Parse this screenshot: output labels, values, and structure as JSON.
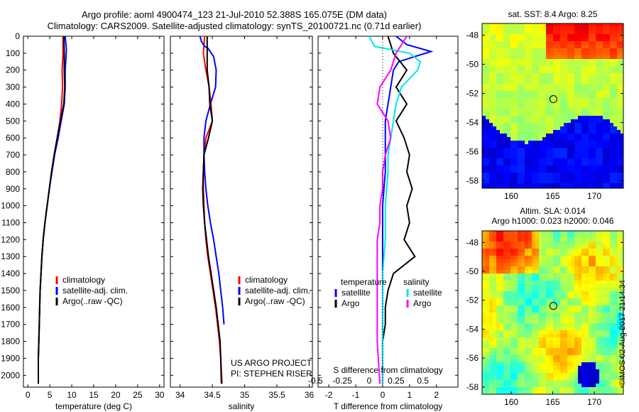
{
  "header": {
    "title_line1": "Argo profile: aoml 4900474_123 21-Jul-2010 52.388S 165.075E (DM data)",
    "title_line2": "Climatology: CARS2009. Satellite-adjusted climatology: synTS_20100721.nc (0.71d earlier)"
  },
  "colors": {
    "climatology": "#ff0000",
    "satellite": "#0000ff",
    "argo": "#000000",
    "salinity_satellite": "#00e5ee",
    "salinity_argo": "#ff00ff"
  },
  "chart_data": [
    {
      "type": "line",
      "id": "temperature",
      "xlabel": "temperature (deg C)",
      "ylabel": "",
      "xlim": [
        -1,
        31
      ],
      "ylim": [
        2070,
        0
      ],
      "xticks": [
        0,
        5,
        10,
        15,
        20,
        25,
        30
      ],
      "xtick_labels": [
        "0",
        "5",
        "10",
        "15",
        "20",
        "25",
        "30"
      ],
      "yticks": [
        0,
        100,
        200,
        300,
        400,
        500,
        600,
        700,
        800,
        900,
        1000,
        1100,
        1200,
        1300,
        1400,
        1500,
        1600,
        1700,
        1800,
        1900,
        2000
      ],
      "ytick_labels": [
        "0",
        "100",
        "200",
        "300",
        "400",
        "500",
        "600",
        "700",
        "800",
        "900",
        "1000",
        "1100",
        "1200",
        "1300",
        "1400",
        "1500",
        "1600",
        "1700",
        "1800",
        "1900",
        "2000"
      ],
      "legend": [
        "climatology",
        "satellite-adj. clim.",
        "Argo(..raw -QC)"
      ],
      "series": [
        {
          "name": "climatology",
          "color": "#ff0000",
          "x": [
            8.0,
            8.0,
            7.8,
            7.9,
            7.7,
            7.3,
            6.7,
            6.0,
            5.4,
            4.9,
            4.4,
            3.9,
            3.5,
            3.2,
            3.0,
            2.8,
            2.7,
            2.6,
            2.5,
            2.4,
            2.4
          ],
          "y": [
            0,
            100,
            200,
            300,
            400,
            500,
            600,
            700,
            800,
            900,
            1000,
            1100,
            1200,
            1300,
            1400,
            1500,
            1600,
            1700,
            1800,
            1900,
            2050
          ]
        },
        {
          "name": "satellite-adj. clim.",
          "color": "#0000ff",
          "x": [
            8.5,
            8.8,
            8.5,
            8.5,
            8.3,
            7.6,
            6.9,
            6.1,
            5.5,
            4.9,
            4.4,
            3.9,
            3.5,
            3.2,
            3.0,
            2.8,
            2.7,
            2.6,
            2.5,
            2.4,
            2.4
          ],
          "y": [
            0,
            80,
            200,
            300,
            400,
            500,
            600,
            700,
            800,
            900,
            1000,
            1100,
            1200,
            1300,
            1400,
            1500,
            1600,
            1700,
            1800,
            1900,
            2050
          ]
        },
        {
          "name": "Argo(..raw -QC)",
          "color": "#000000",
          "x": [
            8.2,
            8.3,
            8.3,
            8.4,
            8.2,
            7.4,
            6.7,
            6.0,
            5.4,
            4.9,
            4.4,
            3.9,
            3.5,
            3.2,
            3.0,
            2.8,
            2.7,
            2.6,
            2.5,
            2.4,
            2.4
          ],
          "y": [
            0,
            100,
            200,
            300,
            400,
            500,
            600,
            700,
            800,
            900,
            1000,
            1100,
            1200,
            1300,
            1400,
            1500,
            1600,
            1700,
            1800,
            1900,
            2050
          ]
        }
      ]
    },
    {
      "type": "line",
      "id": "salinity",
      "xlabel": "salinity",
      "ylabel": "",
      "xlim": [
        33.85,
        36.05
      ],
      "ylim": [
        2070,
        0
      ],
      "xticks": [
        34,
        34.5,
        35,
        35.5,
        36
      ],
      "xtick_labels": [
        "34",
        "34.5",
        "35",
        "35.5",
        "36"
      ],
      "legend": [
        "climatology",
        "satellite-adj. clim.",
        "Argo(..raw -QC)"
      ],
      "annotations": [
        "US ARGO PROJECT",
        "PI: STEPHEN RISER"
      ],
      "series": [
        {
          "name": "climatology",
          "color": "#ff0000",
          "x": [
            34.38,
            34.36,
            34.4,
            34.45,
            34.48,
            34.5,
            34.4,
            34.37,
            34.36,
            34.36,
            34.37,
            34.38,
            34.4,
            34.43,
            34.47,
            34.51,
            34.55,
            34.58,
            34.61,
            34.63,
            34.65
          ],
          "y": [
            0,
            100,
            200,
            300,
            400,
            500,
            600,
            700,
            800,
            900,
            1000,
            1100,
            1200,
            1300,
            1400,
            1500,
            1600,
            1700,
            1800,
            1900,
            2050
          ]
        },
        {
          "name": "satellite-adj. clim.",
          "color": "#0000ff",
          "x": [
            34.31,
            34.33,
            34.38,
            34.43,
            34.52,
            34.56,
            34.55,
            34.47,
            34.4,
            34.37,
            34.37,
            34.38,
            34.4,
            34.43,
            34.47,
            34.52,
            34.56,
            34.6,
            34.63,
            34.66,
            34.68
          ],
          "y": [
            0,
            30,
            60,
            70,
            120,
            200,
            300,
            400,
            500,
            600,
            700,
            800,
            900,
            1000,
            1100,
            1200,
            1300,
            1400,
            1500,
            1600,
            1700
          ]
        },
        {
          "name": "Argo(..raw -QC)",
          "color": "#000000",
          "x": [
            34.42,
            34.42,
            34.42,
            34.45,
            34.46,
            34.5,
            34.44,
            34.37,
            34.36,
            34.35,
            34.36,
            34.38,
            34.41,
            34.44,
            34.48,
            34.52,
            34.56,
            34.59,
            34.62,
            34.63,
            34.64
          ],
          "y": [
            0,
            100,
            200,
            300,
            400,
            500,
            600,
            700,
            800,
            900,
            1000,
            1100,
            1200,
            1300,
            1400,
            1500,
            1600,
            1700,
            1800,
            1900,
            2050
          ]
        }
      ]
    },
    {
      "type": "line",
      "id": "difference",
      "xlabel": "T difference from climatology",
      "x2label": "S difference from climatology",
      "xlim": [
        -2.4,
        2.8
      ],
      "ylim": [
        2070,
        0
      ],
      "xticks": [
        -2,
        -1,
        0,
        1,
        2
      ],
      "xtick_labels": [
        "-2",
        "-1",
        "0",
        "1",
        "2"
      ],
      "x2ticks": [
        -2,
        -1,
        0,
        1,
        2
      ],
      "x2tick_labels": [
        "-0.5",
        "-0.25",
        "0",
        "0.25",
        "0.5"
      ],
      "legend_temperature_title": "temperature",
      "legend_salinity_title": "salinity",
      "legend": [
        "satellite",
        "Argo",
        "satellite",
        "Argo"
      ],
      "series": [
        {
          "name": "satellite",
          "group": "temperature",
          "color": "#0000ff",
          "x": [
            0.5,
            0.9,
            1.8,
            1.2,
            0.6,
            0.4,
            0.3,
            0.2,
            0.1,
            0.1,
            0.1,
            0.0,
            0.0,
            0.0,
            0.0,
            0.0,
            0.0,
            0.0,
            0.0,
            0.0
          ],
          "y": [
            0,
            50,
            90,
            120,
            150,
            200,
            300,
            400,
            500,
            600,
            800,
            1000,
            1200,
            1400,
            1500,
            1600,
            1700,
            1800,
            1900,
            2050
          ]
        },
        {
          "name": "Argo",
          "group": "temperature",
          "color": "#000000",
          "x": [
            0.2,
            0.4,
            0.9,
            0.5,
            0.9,
            0.5,
            0.8,
            1.0,
            0.9,
            1.1,
            0.9,
            1.0,
            0.8,
            1.2,
            0.4,
            0.2,
            0.1,
            0.1,
            0.0,
            0.0
          ],
          "y": [
            0,
            100,
            200,
            300,
            400,
            500,
            600,
            700,
            800,
            900,
            1000,
            1100,
            1200,
            1300,
            1400,
            1500,
            1600,
            1700,
            1800,
            2050
          ]
        },
        {
          "name": "satellite",
          "group": "salinity",
          "color": "#00e5ee",
          "x": [
            -0.5,
            -0.3,
            1.0,
            1.4,
            1.3,
            0.7,
            0.5,
            0.4,
            0.3,
            0.2,
            0.2,
            0.1,
            0.1,
            0.0,
            0.0,
            0.0,
            0.0,
            0.0,
            0.0
          ],
          "y": [
            0,
            60,
            100,
            150,
            200,
            300,
            400,
            500,
            600,
            700,
            800,
            1000,
            1200,
            1400,
            1500,
            1600,
            1700,
            1800,
            2050
          ]
        },
        {
          "name": "Argo",
          "group": "salinity",
          "color": "#ff00ff",
          "x": [
            0.9,
            0.5,
            0.3,
            -0.1,
            -0.2,
            0.2,
            0.3,
            0.1,
            0.0,
            0.0,
            -0.1,
            -0.1,
            -0.2,
            -0.2,
            -0.2,
            -0.2,
            -0.2,
            -0.2,
            -0.2,
            -0.1
          ],
          "y": [
            0,
            100,
            200,
            300,
            400,
            500,
            600,
            700,
            800,
            900,
            1000,
            1100,
            1200,
            1300,
            1400,
            1500,
            1600,
            1700,
            1800,
            2050
          ]
        }
      ]
    },
    {
      "type": "heatmap",
      "id": "sst_map",
      "title": "sat. SST: 8.4 Argo: 8.25",
      "xlim": [
        156.5,
        173.5
      ],
      "ylim": [
        -58.5,
        -47.2
      ],
      "xticks": [
        160,
        165,
        170
      ],
      "yticks": [
        -48,
        -50,
        -52,
        -54,
        -56,
        -58
      ],
      "argo_position": {
        "lon": 165.075,
        "lat": -52.388
      }
    },
    {
      "type": "heatmap",
      "id": "sla_map",
      "title_line1": "Altim. SLA: 0.014",
      "title_line2": "Argo h1000: 0.023 h2000: 0.046",
      "xlim": [
        156.5,
        173.5
      ],
      "ylim": [
        -58.5,
        -47.2
      ],
      "xticks": [
        160,
        165,
        170
      ],
      "yticks": [
        -48,
        -50,
        -52,
        -54,
        -56,
        -58
      ],
      "argo_position": {
        "lon": 165.075,
        "lat": -52.388
      }
    }
  ],
  "watermark": "©IMOS 02-Aug-2017 21:14:34"
}
